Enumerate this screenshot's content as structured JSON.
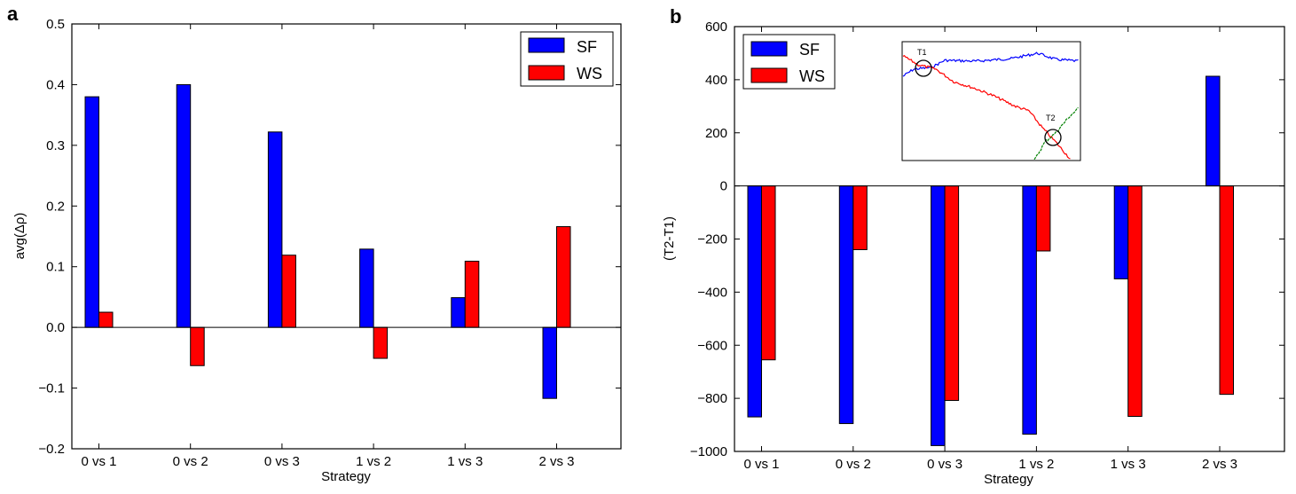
{
  "chart_data": [
    {
      "panel": "a",
      "type": "bar",
      "categories": [
        "0 vs 1",
        "0 vs 2",
        "0 vs 3",
        "1 vs 2",
        "1 vs 3",
        "2 vs 3"
      ],
      "series": [
        {
          "name": "SF",
          "color": "#0000ff",
          "values": [
            0.38,
            0.4,
            0.322,
            0.129,
            0.049,
            -0.117
          ]
        },
        {
          "name": "WS",
          "color": "#ff0000",
          "values": [
            0.025,
            -0.063,
            0.119,
            -0.051,
            0.109,
            0.166
          ]
        }
      ],
      "xlabel": "Strategy",
      "ylabel": "avg(Δρ)",
      "ylim": [
        -0.2,
        0.5
      ],
      "yticks": [
        -0.2,
        -0.1,
        0.0,
        0.1,
        0.2,
        0.3,
        0.4,
        0.5
      ],
      "ytick_labels": [
        "−0.2",
        "−0.1",
        "0.0",
        "0.1",
        "0.2",
        "0.3",
        "0.4",
        "0.5"
      ],
      "legend_position": "top-right"
    },
    {
      "panel": "b",
      "type": "bar",
      "categories": [
        "0 vs 1",
        "0 vs 2",
        "0 vs 3",
        "1 vs 2",
        "1 vs 3",
        "2 vs 3"
      ],
      "series": [
        {
          "name": "SF",
          "color": "#0000ff",
          "values": [
            -870,
            -895,
            -978,
            -935,
            -350,
            413
          ]
        },
        {
          "name": "WS",
          "color": "#ff0000",
          "values": [
            -655,
            -240,
            -808,
            -245,
            -868,
            -785
          ]
        }
      ],
      "xlabel": "Strategy",
      "ylabel": "(T2-T1)",
      "ylim": [
        -1000,
        600
      ],
      "yticks": [
        -1000,
        -800,
        -600,
        -400,
        -200,
        0,
        200,
        400,
        600
      ],
      "ytick_labels": [
        "−1000",
        "−800",
        "−600",
        "−400",
        "−200",
        "0",
        "200",
        "400",
        "600"
      ],
      "legend_position": "top-left",
      "inset": {
        "labels": [
          "T1",
          "T2"
        ],
        "line_colors": [
          "#0000ff",
          "#ff0000",
          "#008000"
        ]
      }
    }
  ]
}
